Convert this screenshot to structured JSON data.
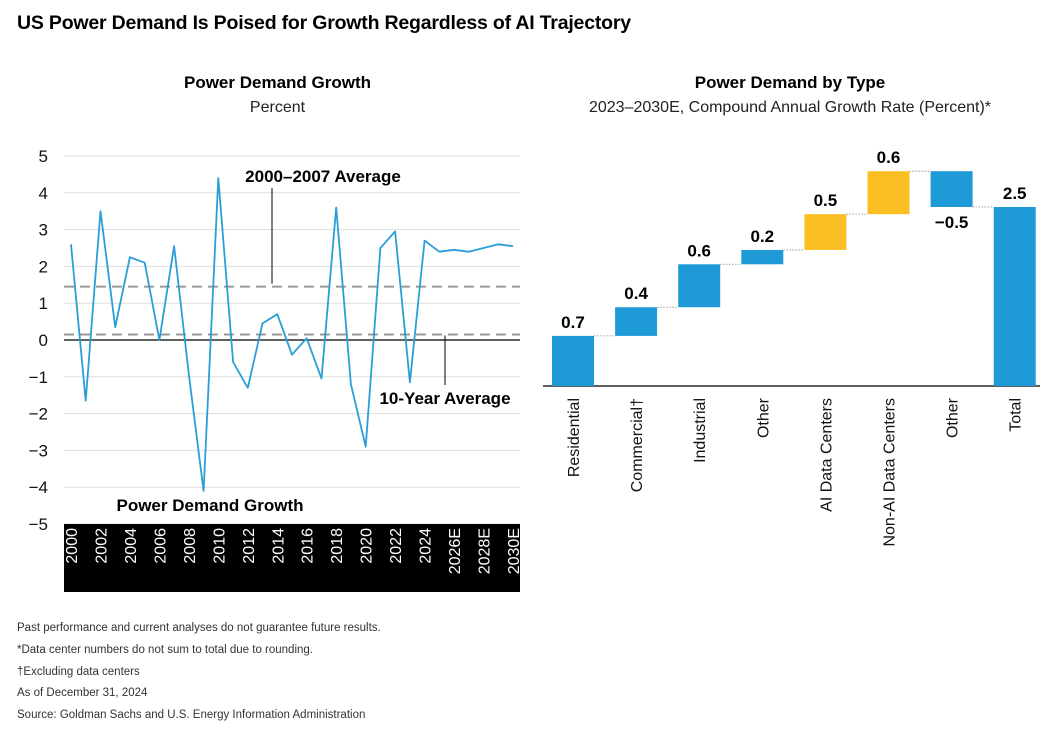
{
  "main_title": "US Power Demand Is Poised for Growth Regardless of AI Trajectory",
  "footnotes": [
    "Past performance and current analyses do not guarantee future results.",
    "*Data center numbers do not sum to total due to rounding.",
    "†Excluding data centers",
    "As of December 31, 2024",
    "Source: Goldman Sachs and U.S. Energy Information Administration"
  ],
  "colors": {
    "line": "#2a9fd6",
    "bar_blue": "#1e9bd7",
    "bar_yellow": "#fbbf24",
    "ref_dash": "#999999"
  },
  "chart_data": [
    {
      "type": "line",
      "title": "Power Demand Growth",
      "subtitle": "Percent",
      "ylim": [
        -5,
        5
      ],
      "yticks": [
        "5",
        "4",
        "3",
        "2",
        "1",
        "0",
        "−1",
        "−2",
        "−3",
        "−4",
        "−5"
      ],
      "xticks": [
        "2000",
        "2002",
        "2004",
        "2006",
        "2008",
        "2010",
        "2012",
        "2014",
        "2016",
        "2018",
        "2020",
        "2022",
        "2024",
        "2026E",
        "2028E",
        "2030E"
      ],
      "grid": true,
      "series": [
        {
          "name": "Power Demand Growth",
          "x": [
            2000,
            2001,
            2002,
            2003,
            2004,
            2005,
            2006,
            2007,
            2008,
            2009,
            2010,
            2011,
            2012,
            2013,
            2014,
            2015,
            2016,
            2017,
            2018,
            2019,
            2020,
            2021,
            2022,
            2023,
            2024,
            2025,
            2026,
            2027,
            2028,
            2029,
            2030
          ],
          "values": [
            2.6,
            -1.65,
            3.5,
            0.35,
            2.25,
            2.1,
            0.0,
            2.55,
            -0.95,
            -4.1,
            4.4,
            -0.6,
            -1.3,
            0.45,
            0.7,
            -0.4,
            0.05,
            -1.05,
            3.6,
            -1.2,
            -2.9,
            2.5,
            2.95,
            -1.15,
            2.7,
            2.4,
            2.45,
            2.4,
            2.5,
            2.6,
            2.55
          ]
        }
      ],
      "reference_lines": [
        {
          "label": "2000–2007 Average",
          "value": 1.45
        },
        {
          "label": "10-Year Average",
          "value": 0.15
        }
      ]
    },
    {
      "type": "bar",
      "subtype": "waterfall",
      "title": "Power Demand by Type",
      "subtitle": "2023–2030E, Compound Annual Growth Rate (Percent)*",
      "categories": [
        "Residential",
        "Commercial†",
        "Industrial",
        "Other",
        "AI Data Centers",
        "Non-AI Data Centers",
        "Other",
        "Total"
      ],
      "values": [
        0.7,
        0.4,
        0.6,
        0.2,
        0.5,
        0.6,
        -0.5,
        2.5
      ],
      "labels": [
        "0.7",
        "0.4",
        "0.6",
        "0.2",
        "0.5",
        "0.6",
        "−0.5",
        "2.5"
      ],
      "bar_colors": [
        "blue",
        "blue",
        "blue",
        "blue",
        "yellow",
        "yellow",
        "blue",
        "blue"
      ]
    }
  ]
}
